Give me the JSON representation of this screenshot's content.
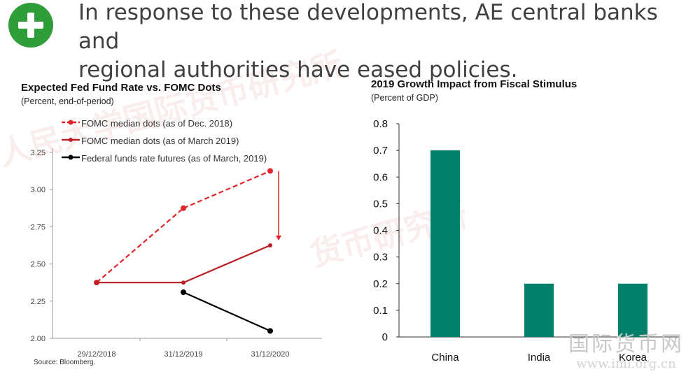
{
  "headline": {
    "line1": "In response to these developments, AE central banks and",
    "line2": "regional authorities have eased policies."
  },
  "icon": "plus-icon",
  "colors": {
    "icon_green": "#2e9d3a",
    "dec2018": "#e0262b",
    "mar2019": "#b81e24",
    "futures": "#000000",
    "bar": "#00806a"
  },
  "watermarks": {
    "diagonal_1": "人民大学国际货币研究所",
    "diagonal_2": "货币研究所",
    "bottom_cn": "国际货币网",
    "bottom_url": "www.imi.org.cn"
  },
  "source_note": "Source: Bloomberg.",
  "chart_data": [
    {
      "type": "line",
      "title": "Expected Fed Fund Rate vs. FOMC Dots",
      "subtitle": "(Percent, end-of-period)",
      "xlabel": "",
      "ylabel": "",
      "x": [
        "29/12/2018",
        "31/12/2019",
        "31/12/2020"
      ],
      "ylim": [
        2.0,
        3.25
      ],
      "yticks": [
        "2.00",
        "2.25",
        "2.50",
        "2.75",
        "3.00",
        "3.25"
      ],
      "series": [
        {
          "name": "FOMC median dots (as of Dec. 2018)",
          "values": [
            2.375,
            2.875,
            3.125
          ],
          "style": "dashed"
        },
        {
          "name": "FOMC median dots (as of March 2019)",
          "values": [
            2.375,
            2.375,
            2.625
          ],
          "style": "solid"
        },
        {
          "name": "Federal funds rate futures (as of March, 2019)",
          "values": [
            null,
            2.31,
            2.05
          ],
          "style": "solid"
        }
      ],
      "annotation": "downward arrow from 3.125 to 2.625 at 31/12/2020",
      "grid": false,
      "legend": "top-left"
    },
    {
      "type": "bar",
      "title": "2019 Growth Impact from Fiscal Stimulus",
      "subtitle": "(Percent of GDP)",
      "xlabel": "",
      "ylabel": "",
      "categories": [
        "China",
        "India",
        "Korea"
      ],
      "values": [
        0.7,
        0.2,
        0.2
      ],
      "ylim": [
        0,
        0.8
      ],
      "yticks": [
        "0",
        "0.1",
        "0.2",
        "0.3",
        "0.4",
        "0.5",
        "0.6",
        "0.7",
        "0.8"
      ],
      "grid": false
    }
  ]
}
